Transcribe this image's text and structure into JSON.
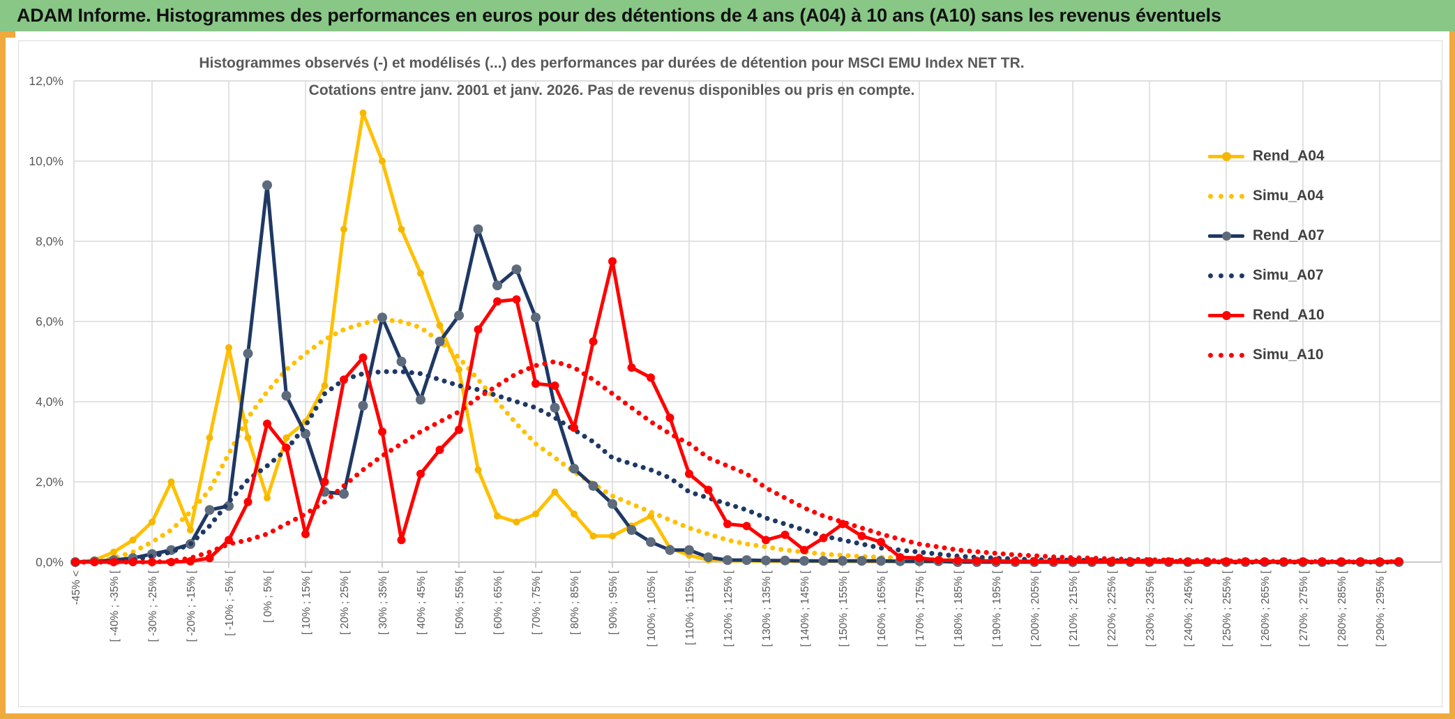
{
  "banner": {
    "title": "ADAM Informe. Histogrammes des performances en euros pour des détentions de 4 ans (A04) à 10 ans (A10) sans les revenus éventuels"
  },
  "chart": {
    "title_line1": "Histogrammes observés (-) et modélisés (...) des performances par durées de détention pour MSCI EMU Index NET TR.",
    "title_line2": "Cotations entre janv. 2001 et janv. 2026. Pas de revenus disponibles ou pris en compte.",
    "legend": [
      {
        "label": "Rend_A04",
        "color": "#FFC000",
        "marker": "#F5B700",
        "style": "solid"
      },
      {
        "label": "Simu_A04",
        "color": "#FFC000",
        "style": "dotted"
      },
      {
        "label": "Rend_A07",
        "color": "#1F3864",
        "marker": "#5E6B7C",
        "style": "solid"
      },
      {
        "label": "Simu_A07",
        "color": "#1F3864",
        "style": "dotted"
      },
      {
        "label": "Rend_A10",
        "color": "#FF0000",
        "marker": "#FF0000",
        "style": "solid"
      },
      {
        "label": "Simu_A10",
        "color": "#FF0000",
        "style": "dotted"
      }
    ],
    "colors": {
      "grid": "#D9D9D9",
      "axis": "#BFBFBF",
      "tick_text": "#595959"
    }
  },
  "chart_data": {
    "type": "line",
    "title": "Histogrammes observés (-) et modélisés (...) des performances par durées de détention pour MSCI EMU Index NET TR. Cotations entre janv. 2001 et janv. 2026. Pas de revenus disponibles ou pris en compte.",
    "xlabel": "",
    "ylabel": "",
    "ylim": [
      0,
      12
    ],
    "grid": true,
    "legend_position": "right-inside",
    "y_ticks": [
      "0,0%",
      "2,0%",
      "4,0%",
      "6,0%",
      "8,0%",
      "10,0%",
      "12,0%"
    ],
    "x_label_every": 2,
    "x_gridline_every": 4,
    "categories": [
      "-45% <",
      "",
      "[ -40% ; -35% [",
      "",
      "[ -30% ; -25% [",
      "",
      "[ -20% ; -15% [",
      "",
      "[ -10% ; -5% [",
      "",
      "[ 0% ; 5% [",
      "",
      "[ 10% ; 15% [",
      "",
      "[ 20% ; 25% [",
      "",
      "[ 30% ; 35% [",
      "",
      "[ 40% ; 45% [",
      "",
      "[ 50% ; 55% [",
      "",
      "[ 60% ; 65% [",
      "",
      "[ 70% ; 75% [",
      "",
      "[ 80% ; 85% [",
      "",
      "[ 90% ; 95% [",
      "",
      "[ 100% ; 105% [",
      "",
      "[ 110% ; 115% [",
      "",
      "[ 120% ; 125% [",
      "",
      "[ 130% ; 135% [",
      "",
      "[ 140% ; 145% [",
      "",
      "[ 150% ; 155% [",
      "",
      "[ 160% ; 165% [",
      "",
      "[ 170% ; 175% [",
      "",
      "[ 180% ; 185% [",
      "",
      "[ 190% ; 195% [",
      "",
      "[ 200% ; 205% [",
      "",
      "[ 210% ; 215% [",
      "",
      "[ 220% ; 225% [",
      "",
      "[ 230% ; 235% [",
      "",
      "[ 240% ; 245% [",
      "",
      "[ 250% ; 255% [",
      "",
      "[ 260% ; 265% [",
      "",
      "[ 270% ; 275% [",
      "",
      "[ 280% ; 285% [",
      "",
      "[ 290% ; 295% [",
      ""
    ],
    "series": [
      {
        "name": "Rend_A04",
        "style": "solid",
        "color": "#FFC000",
        "marker_color": "#F5B700",
        "marker_r": 5,
        "values": [
          0,
          0.05,
          0.25,
          0.55,
          1,
          2,
          0.8,
          3.1,
          5.35,
          3.1,
          1.6,
          3.1,
          3.5,
          4.4,
          8.3,
          11.2,
          10,
          8.3,
          7.2,
          5.9,
          4.8,
          2.3,
          1.15,
          1,
          1.2,
          1.75,
          1.2,
          0.65,
          0.65,
          0.9,
          1.15,
          0.35,
          0.17,
          0.05,
          0.03,
          0.03,
          0.02,
          0.02,
          0.02,
          0.02,
          0.02,
          0.01,
          0.01,
          0.01,
          0.01,
          0.01,
          0,
          0,
          0,
          0,
          0,
          0,
          0,
          0,
          0,
          0,
          0,
          0,
          0,
          0,
          0,
          0,
          0,
          0,
          0,
          0,
          0,
          0,
          0,
          0
        ]
      },
      {
        "name": "Simu_A04",
        "style": "dotted",
        "color": "#FFC000",
        "values": [
          0,
          0.02,
          0.1,
          0.25,
          0.5,
          0.8,
          1.25,
          1.8,
          2.7,
          3.6,
          4.25,
          4.8,
          5.2,
          5.55,
          5.8,
          5.95,
          6.05,
          6,
          5.85,
          5.5,
          5.1,
          4.55,
          4,
          3.45,
          2.95,
          2.6,
          2.25,
          1.95,
          1.65,
          1.45,
          1.25,
          1.05,
          0.85,
          0.7,
          0.55,
          0.45,
          0.38,
          0.3,
          0.25,
          0.2,
          0.17,
          0.14,
          0.12,
          0.1,
          0.08,
          0.07,
          0.06,
          0.05,
          0.04,
          0.04,
          0.03,
          0.03,
          0.02,
          0.02,
          0.02,
          0.01,
          0.01,
          0.01,
          0,
          0,
          0,
          0,
          0,
          0,
          0,
          0,
          0,
          0,
          0,
          0
        ]
      },
      {
        "name": "Rend_A07",
        "style": "solid",
        "color": "#1F3864",
        "marker_color": "#5E6B7C",
        "marker_r": 7,
        "values": [
          0,
          0.02,
          0.05,
          0.1,
          0.2,
          0.3,
          0.45,
          1.3,
          1.4,
          5.2,
          9.4,
          4.15,
          3.2,
          1.75,
          1.7,
          3.9,
          6.1,
          5,
          4.05,
          5.5,
          6.15,
          8.3,
          6.9,
          7.3,
          6.1,
          3.85,
          2.33,
          1.9,
          1.45,
          0.8,
          0.5,
          0.3,
          0.3,
          0.12,
          0.05,
          0.05,
          0.04,
          0.04,
          0.03,
          0.03,
          0.03,
          0.03,
          0.03,
          0.02,
          0.02,
          0.02,
          0,
          0,
          0,
          0,
          0,
          0,
          0,
          0,
          0,
          0,
          0,
          0,
          0,
          0,
          0,
          0,
          0,
          0,
          0,
          0,
          0,
          0,
          0,
          0
        ]
      },
      {
        "name": "Simu_A07",
        "style": "dotted",
        "color": "#1F3864",
        "values": [
          0,
          0,
          0.02,
          0.05,
          0.15,
          0.25,
          0.45,
          0.9,
          1.5,
          2.05,
          2.4,
          2.8,
          3.4,
          4.2,
          4.55,
          4.7,
          4.75,
          4.75,
          4.7,
          4.55,
          4.4,
          4.3,
          4.15,
          4,
          3.85,
          3.6,
          3.3,
          3,
          2.6,
          2.45,
          2.3,
          2.1,
          1.75,
          1.6,
          1.45,
          1.3,
          1.1,
          0.95,
          0.8,
          0.65,
          0.55,
          0.45,
          0.35,
          0.3,
          0.25,
          0.2,
          0.15,
          0.12,
          0.1,
          0.08,
          0.06,
          0.05,
          0.05,
          0.04,
          0.04,
          0.03,
          0.02,
          0.02,
          0.01,
          0.01,
          0,
          0,
          0,
          0,
          0,
          0,
          0,
          0,
          0,
          0
        ]
      },
      {
        "name": "Rend_A10",
        "style": "solid",
        "color": "#FF0000",
        "marker_color": "#FF0000",
        "marker_r": 6,
        "values": [
          0,
          0,
          0,
          0,
          0,
          0,
          0.02,
          0.1,
          0.55,
          1.5,
          3.45,
          2.85,
          0.7,
          2,
          4.55,
          5.1,
          3.25,
          0.55,
          2.2,
          2.8,
          3.3,
          5.8,
          6.5,
          6.55,
          4.45,
          4.4,
          3.35,
          5.5,
          7.5,
          4.85,
          4.6,
          3.6,
          2.2,
          1.8,
          0.95,
          0.9,
          0.55,
          0.68,
          0.3,
          0.6,
          0.95,
          0.65,
          0.5,
          0.12,
          0.1,
          0.05,
          0.04,
          0.03,
          0.03,
          0.02,
          0.02,
          0.02,
          0.02,
          0.02,
          0.01,
          0.01,
          0.01,
          0.01,
          0.01,
          0.01,
          0.01,
          0.01,
          0.01,
          0.01,
          0.01,
          0.01,
          0.01,
          0.01,
          0.01,
          0.02
        ]
      },
      {
        "name": "Simu_A10",
        "style": "dotted",
        "color": "#FF0000",
        "values": [
          0,
          0,
          0,
          0,
          0,
          0.02,
          0.1,
          0.25,
          0.45,
          0.55,
          0.7,
          0.95,
          1.2,
          1.5,
          1.9,
          2.3,
          2.65,
          2.95,
          3.25,
          3.5,
          3.75,
          4.1,
          4.4,
          4.7,
          4.9,
          5,
          4.85,
          4.55,
          4.2,
          3.85,
          3.5,
          3.2,
          2.95,
          2.6,
          2.4,
          2.2,
          1.85,
          1.6,
          1.35,
          1.15,
          1,
          0.85,
          0.7,
          0.57,
          0.45,
          0.38,
          0.3,
          0.26,
          0.22,
          0.18,
          0.16,
          0.13,
          0.11,
          0.1,
          0.08,
          0.07,
          0.06,
          0.05,
          0.04,
          0.04,
          0.03,
          0.03,
          0.02,
          0.02,
          0.02,
          0.01,
          0.01,
          0.01,
          0.01,
          0.01
        ]
      }
    ]
  }
}
